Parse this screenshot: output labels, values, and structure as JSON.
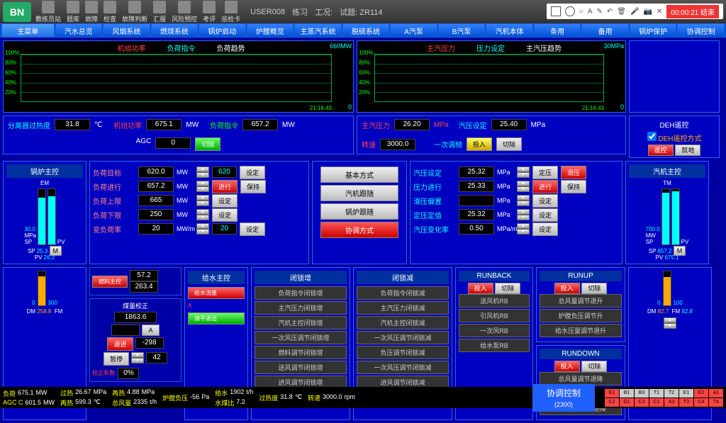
{
  "toolbar": {
    "logo": "BN",
    "buttons": [
      {
        "label": "教练员站"
      },
      {
        "label": "题库"
      },
      {
        "label": "故障"
      },
      {
        "label": "检查"
      },
      {
        "label": "故障判断"
      },
      {
        "label": "汇报"
      },
      {
        "label": "风险预控"
      },
      {
        "label": "考评"
      },
      {
        "label": "巡检卡"
      }
    ],
    "user": "USER008",
    "mode": "练习",
    "station": "工况:",
    "sim": "试题: ZR114"
  },
  "recorder": {
    "time": "00:00:21 结束"
  },
  "nav": [
    "主菜单",
    "汽水总览",
    "风烟系统",
    "燃烧系统",
    "锅炉启动",
    "炉膛概览",
    "主蒸汽系统",
    "脱硫系统",
    "A汽泵",
    "B汽泵",
    "汽机本体",
    "条用",
    "备用",
    "锅炉保护",
    "协调控制"
  ],
  "charts": {
    "left": {
      "legends": [
        {
          "text": "机组功率",
          "color": "#f44"
        },
        {
          "text": "负荷指令",
          "color": "#0ff"
        }
      ],
      "title": "负荷趋势",
      "ymax": "100%",
      "ylabels": [
        "100%",
        "80%",
        "60%",
        "40%",
        "20%"
      ],
      "xend": "21:16:43",
      "range_top": "660MW",
      "range_bot": "0",
      "bg": "#000",
      "grid": "#044"
    },
    "right": {
      "legends": [
        {
          "text": "主汽压力",
          "color": "#f44"
        },
        {
          "text": "压力设定",
          "color": "#0ff"
        }
      ],
      "title": "主汽压趋势",
      "ylabels": [
        "100%",
        "80%",
        "60%",
        "40%",
        "20%"
      ],
      "xend": "21:16:43",
      "range_top": "30MPa",
      "range_bot": "0",
      "bg": "#000",
      "grid": "#044"
    }
  },
  "params_left": {
    "sep": {
      "label": "分离器过热度",
      "val": "31.8",
      "unit": "℃"
    },
    "power": {
      "label": "机组功率",
      "val": "675.1",
      "unit": "MW",
      "color": "#f44"
    },
    "load": {
      "label": "负荷指令",
      "val": "657.2",
      "unit": "MW",
      "color": "#0f0"
    },
    "agc": {
      "label": "AGC",
      "val": "0",
      "btn": "切除"
    }
  },
  "params_right": {
    "press": {
      "label": "主汽压力",
      "val": "26.20",
      "unit": "MPa",
      "color": "#f44"
    },
    "pset": {
      "label": "汽压设定",
      "val": "25.40",
      "unit": "MPa"
    },
    "speed": {
      "label": "转速",
      "val": "3000.0",
      "unit": "",
      "color": "#f44"
    },
    "freq": {
      "label": "一次调频",
      "btn1": "投入",
      "btn2": "切除"
    }
  },
  "boiler": {
    "title": "锅炉主控",
    "sub": "EM",
    "sp": "30.0",
    "sp_unit": "MPa",
    "pv_lbl": "PV",
    "sp2": "25.3",
    "pv2": "26.2",
    "btn": "M",
    "bar_sp": {
      "pct": 84,
      "color": "#0ff"
    },
    "bar_pv": {
      "pct": 87,
      "color": "#0ff"
    }
  },
  "turbine": {
    "title": "汽机主控",
    "sub": "TM",
    "sp": "700.0",
    "sp_unit": "MW",
    "pv_lbl": "PV",
    "sp2": "657.2",
    "pv2": "675.1",
    "btn": "M",
    "bar_sp": {
      "pct": 94,
      "color": "#0ff"
    },
    "bar_pv": {
      "pct": 96,
      "color": "#0ff"
    }
  },
  "deh": {
    "title": "DEH遥控",
    "chk": "DEH遥控方式",
    "btn1": "遥控",
    "btn2": "就地"
  },
  "load_ctrl": {
    "rows": [
      {
        "label": "负荷目标",
        "val": "620.0",
        "unit": "MW",
        "val2": "620",
        "btn": "设定",
        "color": "#f88"
      },
      {
        "label": "负荷进行",
        "val": "657.2",
        "unit": "MW",
        "btn": "保持",
        "color": "#f88",
        "btnred": "进行"
      },
      {
        "label": "负荷上限",
        "val": "665",
        "unit": "MW",
        "btn": "设定",
        "color": "#f88"
      },
      {
        "label": "负荷下限",
        "val": "250",
        "unit": "MW",
        "btn": "设定",
        "color": "#f88"
      },
      {
        "label": "变负荷率",
        "val": "20",
        "unit": "MW/m",
        "val2": "20",
        "btn": "设定",
        "color": "#f88"
      }
    ]
  },
  "press_ctrl": {
    "rows": [
      {
        "label": "汽压设定",
        "val": "25.32",
        "unit": "MPa",
        "btn": "定压",
        "btn2": "滑压"
      },
      {
        "label": "压力进行",
        "val": "25.33",
        "unit": "MPa",
        "btnred": "进行",
        "btn": "保持"
      },
      {
        "label": "滑压偏置",
        "val": "",
        "unit": "MPa",
        "btn": "设定"
      },
      {
        "label": "定压定值",
        "val": "25.32",
        "unit": "MPa",
        "btn": "设定"
      },
      {
        "label": "汽压变化率",
        "val": "0.50",
        "unit": "MPa/m",
        "btn": "设定"
      }
    ]
  },
  "center_cmds": [
    "基本方式",
    "汽机跟随",
    "锅炉跟随",
    "协调方式"
  ],
  "fuel": {
    "title": "燃料主控",
    "v1": "57.2",
    "v2": "263.4"
  },
  "coal": {
    "title": "煤量校正",
    "v1": "1863.6",
    "v2": "",
    "v3": "-298",
    "v4": "",
    "v5": "42",
    "btn1": "A",
    "btn2": "递进",
    "btn3": "暂停",
    "corr": "校正系数:",
    "corrv": "0%"
  },
  "water": {
    "title": "给水主控",
    "btn1": "给水流量",
    "btn2": "请平退出",
    "mark": "A"
  },
  "blocks": {
    "inc": {
      "title": "闭锁增",
      "items": [
        "负荷指令闭锁增",
        "主汽压力闭锁增",
        "汽机主控闭锁增",
        "一次风压调节闭锁增",
        "燃料调节闭锁增",
        "送风调节闭锁增",
        "进风调节闭锁增"
      ]
    },
    "dec": {
      "title": "闭锁减",
      "items": [
        "负荷指令闭锁减",
        "主汽压力闭锁减",
        "汽机主控闭锁减",
        "一次风压调节闭锁减",
        "负压调节闭锁减",
        "一次风压调节闭锁减",
        "进风调节闭锁减"
      ]
    },
    "runback": {
      "title": "RUNBACK",
      "btn1": "投入",
      "btn2": "切除",
      "items": [
        "送风机RB",
        "引风机RB",
        "一次风RB",
        "给水泵RB"
      ]
    },
    "runup": {
      "title": "RUNUP",
      "btn1": "投入",
      "btn2": "切除",
      "items": [
        "总风量调节退升",
        "炉膛负压调节升",
        "给水压量调节退升"
      ]
    },
    "rundown": {
      "title": "RUNDOWN",
      "btn1": "投入",
      "btn2": "切除",
      "items": [
        "总风量调节退降",
        "炉膛负压调节降",
        "给水压量调节退降"
      ]
    }
  },
  "gauges": {
    "left": {
      "max": "300",
      "dm": "258.8",
      "fm": "",
      "dmcolor": "#f80",
      "bar": {
        "pct": 86,
        "color": "#fa0"
      }
    },
    "right": {
      "max": "100",
      "dm": "82.7",
      "fm": "82.8",
      "dmcolor": "#f80",
      "bar": {
        "pct": 83,
        "color": "#fa0"
      }
    }
  },
  "status": {
    "items": [
      {
        "l1": "负荷",
        "v1": "675.1",
        "u1": "MW",
        "l2": "AGC C",
        "v2": "601.5",
        "u2": "MW"
      },
      {
        "l1": "过热",
        "v1": "26.67",
        "u1": "MPa",
        "l2": "再热",
        "v2": "599.3",
        "u2": "℃"
      },
      {
        "l1": "再热",
        "v1": "4.88",
        "u1": "MPa",
        "l2": "总风量",
        "v2": "2335",
        "u2": "t/h"
      },
      {
        "l1": "炉膛负压",
        "v1": "-56",
        "u1": "Pa",
        "l2": "",
        "v2": "",
        "u2": ""
      },
      {
        "l1": "给水",
        "v1": "1902",
        "u1": "t/h",
        "l2": "水煤比",
        "v2": "7.2",
        "u2": ""
      },
      {
        "l1": "过热度",
        "v1": "31.8",
        "u1": "℃",
        "l2": "",
        "v2": "",
        "u2": ""
      },
      {
        "l1": "转速",
        "v1": "3000.0",
        "u1": "rpm",
        "l2": "",
        "v2": "",
        "u2": ""
      }
    ],
    "ctrl": "协调控制",
    "ctrlval": "(2300)",
    "inds": [
      {
        "t": "E1",
        "c": "#f44"
      },
      {
        "t": "B1",
        "c": "#ccc"
      },
      {
        "t": "B3",
        "c": "#ccc"
      },
      {
        "t": "T1",
        "c": "#ccc"
      },
      {
        "t": "T2",
        "c": "#ccc"
      },
      {
        "t": "E1",
        "c": "#ccc"
      },
      {
        "t": "E2",
        "c": "#f44"
      },
      {
        "t": "A1",
        "c": "#f44"
      },
      {
        "t": "C2",
        "c": "#f44"
      },
      {
        "t": "G1",
        "c": "#f44"
      },
      {
        "t": "C3",
        "c": "#f44"
      },
      {
        "t": "C1",
        "c": "#f44"
      },
      {
        "t": "A3",
        "c": "#f44"
      },
      {
        "t": "T3",
        "c": "#f44"
      },
      {
        "t": "C4",
        "c": "#f44"
      },
      {
        "t": "T4",
        "c": "#f44"
      }
    ]
  }
}
